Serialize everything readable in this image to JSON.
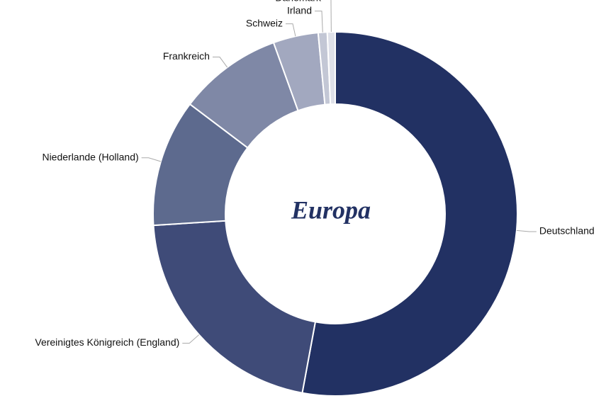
{
  "chart_data": {
    "type": "donut",
    "center_text": "Europa",
    "categories": [
      "Deutschland",
      "Vereinigtes Königreich (England)",
      "Niederlande (Holland)",
      "Frankreich",
      "Schweiz",
      "Irland",
      "Dänemark"
    ],
    "values": [
      52.9,
      21.1,
      11.3,
      9.2,
      4.0,
      0.8,
      0.7
    ],
    "colors": [
      "#223163",
      "#3f4b78",
      "#5d6a8e",
      "#7f88a6",
      "#a2a8bf",
      "#c3c7d5",
      "#dfe1e9"
    ]
  }
}
